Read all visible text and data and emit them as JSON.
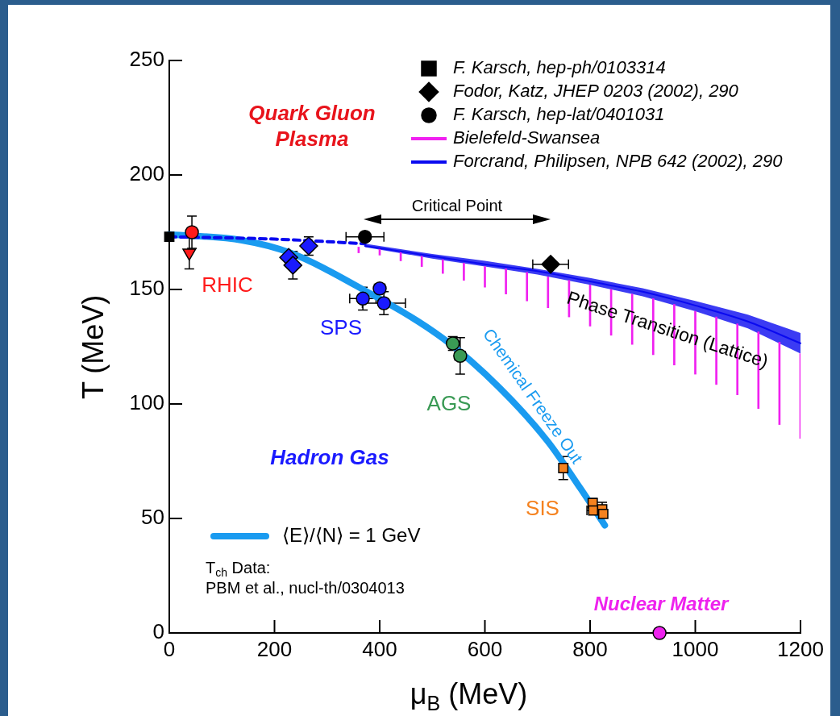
{
  "chart_data": {
    "type": "scatter",
    "xlabel": "μ$_{B}$ (MeV)",
    "ylabel": "T (MeV)",
    "xlim": [
      0,
      1200
    ],
    "ylim": [
      0,
      250
    ],
    "xticks": [
      0,
      200,
      400,
      600,
      800,
      1000,
      1200
    ],
    "yticks": [
      0,
      50,
      100,
      150,
      200,
      250
    ],
    "legend": "top right",
    "series": [
      {
        "name": "F. Karsch, hep-ph/0103314",
        "marker": "square",
        "color": "#000000",
        "x": [
          0
        ],
        "values": [
          173
        ]
      },
      {
        "name": "Fodor, Katz, JHEP 0203 (2002), 290",
        "marker": "diamond",
        "color": "#000000",
        "x": [
          725
        ],
        "values": [
          161
        ],
        "xerrors": [
          34
        ]
      },
      {
        "name": "F. Karsch, hep-lat/0401031",
        "marker": "circle",
        "color": "#000000",
        "x": [
          372
        ],
        "values": [
          173
        ],
        "xerrors": [
          36
        ]
      },
      {
        "name": "Bielefeld-Swansea",
        "type": "bar",
        "color": "#f020f0",
        "x": [
          360,
          400,
          440,
          480,
          520,
          560,
          600,
          640,
          680,
          720,
          760,
          800,
          840,
          880,
          920,
          960,
          1000,
          1040,
          1080,
          1120,
          1160,
          1200
        ],
        "base": [
          166,
          165,
          162.5,
          160,
          157,
          154,
          151,
          148,
          145,
          142,
          138,
          134,
          130,
          126,
          121.5,
          117,
          113,
          108.5,
          104,
          98,
          91,
          85
        ],
        "values": [
          2.5,
          3,
          4,
          4.5,
          6,
          7.5,
          9,
          11,
          12.5,
          13.5,
          16,
          18,
          20,
          22,
          24.5,
          26.5,
          27.5,
          29.5,
          31,
          33.5,
          36,
          37
        ]
      },
      {
        "name": "Forcrand, Philipsen, NPB 642 (2002), 290",
        "type": "line",
        "color": "#0a0af0",
        "x": [
          372,
          500,
          600,
          700,
          800,
          900,
          1000,
          1100,
          1200
        ],
        "values": [
          169,
          164.5,
          161,
          158,
          153.5,
          149,
          143,
          136,
          126.5
        ],
        "lower": [
          168.5,
          163.5,
          160,
          156.5,
          152,
          147,
          140.5,
          133,
          122
        ],
        "upper": [
          170,
          165.5,
          162.5,
          159,
          155,
          150.5,
          145,
          139,
          131
        ]
      },
      {
        "type": "line",
        "color": "#0a0af0",
        "line_style": "dashed",
        "x": [
          0,
          200,
          372
        ],
        "values": [
          173,
          172,
          170
        ]
      },
      {
        "name": "⟨E⟩/⟨N⟩ = 1 GeV",
        "type": "line",
        "color": "#1a9bf0",
        "x": [
          0,
          138,
          230,
          368,
          521,
          628,
          720,
          782,
          828
        ],
        "values": [
          174,
          171.5,
          166,
          150,
          128.5,
          107,
          83.5,
          63,
          47
        ]
      },
      {
        "marker": "circle",
        "color": "#ff1a1a",
        "x": [
          43
        ],
        "values": [
          175
        ],
        "errors": [
          7
        ]
      },
      {
        "marker": "triangle",
        "color": "#ff1a1a",
        "x": [
          38
        ],
        "values": [
          166
        ],
        "errors": [
          7
        ]
      },
      {
        "marker": "diamond",
        "color": "#1a1aff",
        "x": [
          227,
          235,
          265
        ],
        "values": [
          164,
          160.6,
          169
        ],
        "errors": [
          null,
          6,
          4
        ]
      },
      {
        "marker": "circle",
        "color": "#1a1aff",
        "x": [
          368,
          400,
          408
        ],
        "values": [
          146,
          150.4,
          144
        ],
        "errors": [
          5,
          2,
          5
        ],
        "xerrors": [
          25,
          10,
          41
        ]
      },
      {
        "marker": "circle",
        "color": "#3a9a55",
        "x": [
          539,
          553
        ],
        "values": [
          126.4,
          121
        ],
        "errors": [
          3,
          8
        ],
        "xerrors": [
          null,
          10
        ]
      },
      {
        "marker": "square",
        "color": "#f5821f",
        "x": [
          749,
          805,
          806,
          823,
          825
        ],
        "values": [
          72,
          56.7,
          53.5,
          54,
          52
        ],
        "errors": [
          5,
          2,
          null,
          3,
          null
        ],
        "xerrors": [
          null,
          null,
          12,
          null,
          null
        ]
      },
      {
        "marker": "circle",
        "color": "#ee22ee",
        "x": [
          932
        ],
        "values": [
          0
        ]
      }
    ],
    "annotations": [
      "Quark Gluon\nPlasma",
      "Critical Point",
      "RHIC",
      "SPS",
      "AGS",
      "SIS",
      "Hadron Gas",
      "Nuclear Matter",
      "Chemical Freeze Out",
      "Phase Transition (Lattice)",
      "T$_{ch}$ Data:\nPBM et al., nucl-th/0304013"
    ]
  }
}
